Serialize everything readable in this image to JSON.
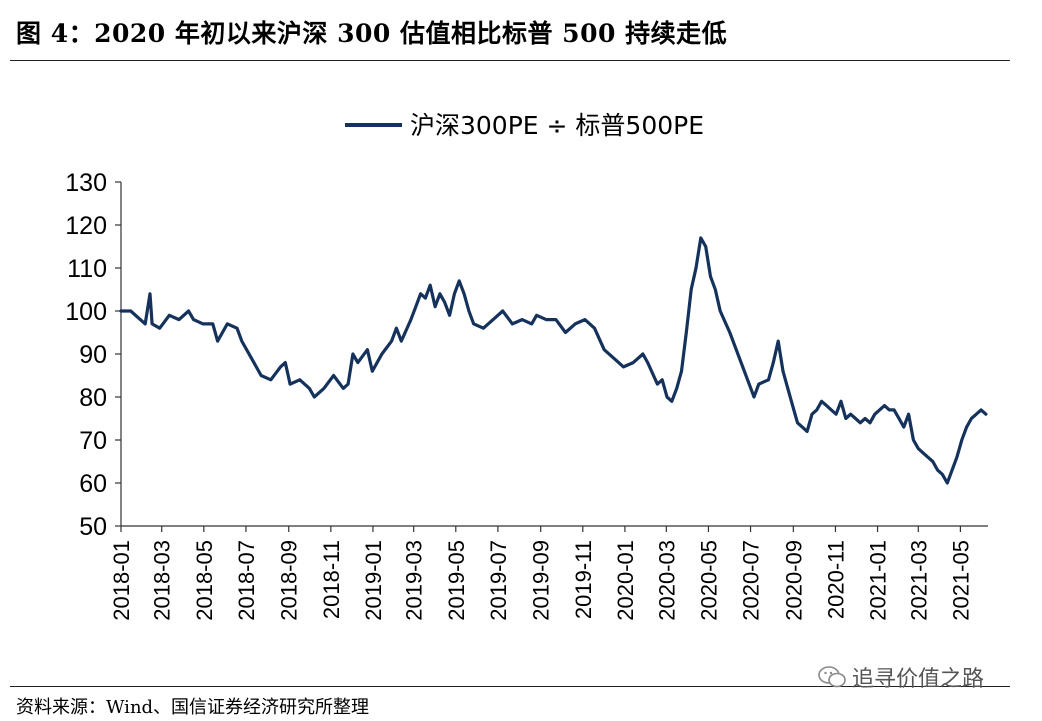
{
  "figure": {
    "title": "图 4：2020 年初以来沪深 300 估值相比标普 500 持续走低",
    "source": "资料来源：Wind、国信证券经济研究所整理",
    "watermark": "追寻价值之路",
    "watermark_icon": "wechat-icon"
  },
  "colors": {
    "line": "#14325C",
    "axis": "#333333",
    "rule": "#222222"
  },
  "chart_data": {
    "type": "line",
    "title": "",
    "xlabel": "",
    "ylabel": "",
    "ylim": [
      50,
      130
    ],
    "yticks": [
      50,
      60,
      70,
      80,
      90,
      100,
      110,
      120,
      130
    ],
    "xlim": [
      "2018-01-01",
      "2021-06-10"
    ],
    "xticks": [
      "2018-01",
      "2018-03",
      "2018-05",
      "2018-07",
      "2018-09",
      "2018-11",
      "2019-01",
      "2019-03",
      "2019-05",
      "2019-07",
      "2019-09",
      "2019-11",
      "2020-01",
      "2020-03",
      "2020-05",
      "2020-07",
      "2020-09",
      "2020-11",
      "2021-01",
      "2021-03",
      "2021-05"
    ],
    "grid": false,
    "legend": "top-center",
    "series": [
      {
        "name": "沪深300PE ÷ 标普500PE",
        "points": [
          [
            "2018-01-01",
            100
          ],
          [
            "2018-01-15",
            100
          ],
          [
            "2018-01-29",
            98
          ],
          [
            "2018-02-05",
            97
          ],
          [
            "2018-02-12",
            104
          ],
          [
            "2018-02-15",
            97
          ],
          [
            "2018-02-26",
            96
          ],
          [
            "2018-03-12",
            99
          ],
          [
            "2018-03-26",
            98
          ],
          [
            "2018-04-09",
            100
          ],
          [
            "2018-04-16",
            98
          ],
          [
            "2018-04-30",
            97
          ],
          [
            "2018-05-14",
            97
          ],
          [
            "2018-05-21",
            93
          ],
          [
            "2018-06-04",
            97
          ],
          [
            "2018-06-18",
            96
          ],
          [
            "2018-06-25",
            93
          ],
          [
            "2018-07-09",
            89
          ],
          [
            "2018-07-23",
            85
          ],
          [
            "2018-08-06",
            84
          ],
          [
            "2018-08-20",
            87
          ],
          [
            "2018-08-27",
            88
          ],
          [
            "2018-09-03",
            83
          ],
          [
            "2018-09-17",
            84
          ],
          [
            "2018-10-01",
            82
          ],
          [
            "2018-10-08",
            80
          ],
          [
            "2018-10-22",
            82
          ],
          [
            "2018-11-05",
            85
          ],
          [
            "2018-11-19",
            82
          ],
          [
            "2018-11-26",
            83
          ],
          [
            "2018-12-03",
            90
          ],
          [
            "2018-12-10",
            88
          ],
          [
            "2018-12-24",
            91
          ],
          [
            "2018-12-31",
            86
          ],
          [
            "2019-01-14",
            90
          ],
          [
            "2019-01-28",
            93
          ],
          [
            "2019-02-04",
            96
          ],
          [
            "2019-02-11",
            93
          ],
          [
            "2019-02-25",
            98
          ],
          [
            "2019-03-04",
            101
          ],
          [
            "2019-03-11",
            104
          ],
          [
            "2019-03-18",
            103
          ],
          [
            "2019-03-25",
            106
          ],
          [
            "2019-04-01",
            101
          ],
          [
            "2019-04-08",
            104
          ],
          [
            "2019-04-15",
            102
          ],
          [
            "2019-04-22",
            99
          ],
          [
            "2019-04-29",
            104
          ],
          [
            "2019-05-06",
            107
          ],
          [
            "2019-05-13",
            104
          ],
          [
            "2019-05-20",
            100
          ],
          [
            "2019-05-27",
            97
          ],
          [
            "2019-06-10",
            96
          ],
          [
            "2019-06-24",
            98
          ],
          [
            "2019-07-08",
            100
          ],
          [
            "2019-07-22",
            97
          ],
          [
            "2019-08-05",
            98
          ],
          [
            "2019-08-19",
            97
          ],
          [
            "2019-08-26",
            99
          ],
          [
            "2019-09-09",
            98
          ],
          [
            "2019-09-23",
            98
          ],
          [
            "2019-10-07",
            95
          ],
          [
            "2019-10-21",
            97
          ],
          [
            "2019-11-04",
            98
          ],
          [
            "2019-11-18",
            96
          ],
          [
            "2019-12-02",
            91
          ],
          [
            "2019-12-16",
            89
          ],
          [
            "2019-12-30",
            87
          ],
          [
            "2020-01-13",
            88
          ],
          [
            "2020-01-27",
            90
          ],
          [
            "2020-02-03",
            88
          ],
          [
            "2020-02-17",
            83
          ],
          [
            "2020-02-24",
            84
          ],
          [
            "2020-03-02",
            80
          ],
          [
            "2020-03-09",
            79
          ],
          [
            "2020-03-16",
            82
          ],
          [
            "2020-03-23",
            86
          ],
          [
            "2020-03-30",
            95
          ],
          [
            "2020-04-06",
            105
          ],
          [
            "2020-04-13",
            110
          ],
          [
            "2020-04-20",
            117
          ],
          [
            "2020-04-27",
            115
          ],
          [
            "2020-05-04",
            108
          ],
          [
            "2020-05-11",
            105
          ],
          [
            "2020-05-18",
            100
          ],
          [
            "2020-06-01",
            95
          ],
          [
            "2020-06-15",
            89
          ],
          [
            "2020-06-29",
            83
          ],
          [
            "2020-07-06",
            80
          ],
          [
            "2020-07-13",
            83
          ],
          [
            "2020-07-27",
            84
          ],
          [
            "2020-08-03",
            88
          ],
          [
            "2020-08-10",
            93
          ],
          [
            "2020-08-17",
            86
          ],
          [
            "2020-08-24",
            82
          ],
          [
            "2020-08-31",
            78
          ],
          [
            "2020-09-07",
            74
          ],
          [
            "2020-09-14",
            73
          ],
          [
            "2020-09-21",
            72
          ],
          [
            "2020-09-28",
            76
          ],
          [
            "2020-10-05",
            77
          ],
          [
            "2020-10-12",
            79
          ],
          [
            "2020-10-19",
            78
          ],
          [
            "2020-10-26",
            77
          ],
          [
            "2020-11-02",
            76
          ],
          [
            "2020-11-09",
            79
          ],
          [
            "2020-11-16",
            75
          ],
          [
            "2020-11-23",
            76
          ],
          [
            "2020-11-30",
            75
          ],
          [
            "2020-12-07",
            74
          ],
          [
            "2020-12-14",
            75
          ],
          [
            "2020-12-21",
            74
          ],
          [
            "2020-12-28",
            76
          ],
          [
            "2021-01-04",
            77
          ],
          [
            "2021-01-11",
            78
          ],
          [
            "2021-01-18",
            77
          ],
          [
            "2021-01-25",
            77
          ],
          [
            "2021-02-01",
            75
          ],
          [
            "2021-02-08",
            73
          ],
          [
            "2021-02-15",
            76
          ],
          [
            "2021-02-22",
            70
          ],
          [
            "2021-03-01",
            68
          ],
          [
            "2021-03-08",
            67
          ],
          [
            "2021-03-15",
            66
          ],
          [
            "2021-03-22",
            65
          ],
          [
            "2021-03-29",
            63
          ],
          [
            "2021-04-05",
            62
          ],
          [
            "2021-04-12",
            60
          ],
          [
            "2021-04-19",
            63
          ],
          [
            "2021-04-26",
            66
          ],
          [
            "2021-05-03",
            70
          ],
          [
            "2021-05-10",
            73
          ],
          [
            "2021-05-17",
            75
          ],
          [
            "2021-05-24",
            76
          ],
          [
            "2021-05-31",
            77
          ],
          [
            "2021-06-07",
            76
          ]
        ]
      }
    ]
  }
}
